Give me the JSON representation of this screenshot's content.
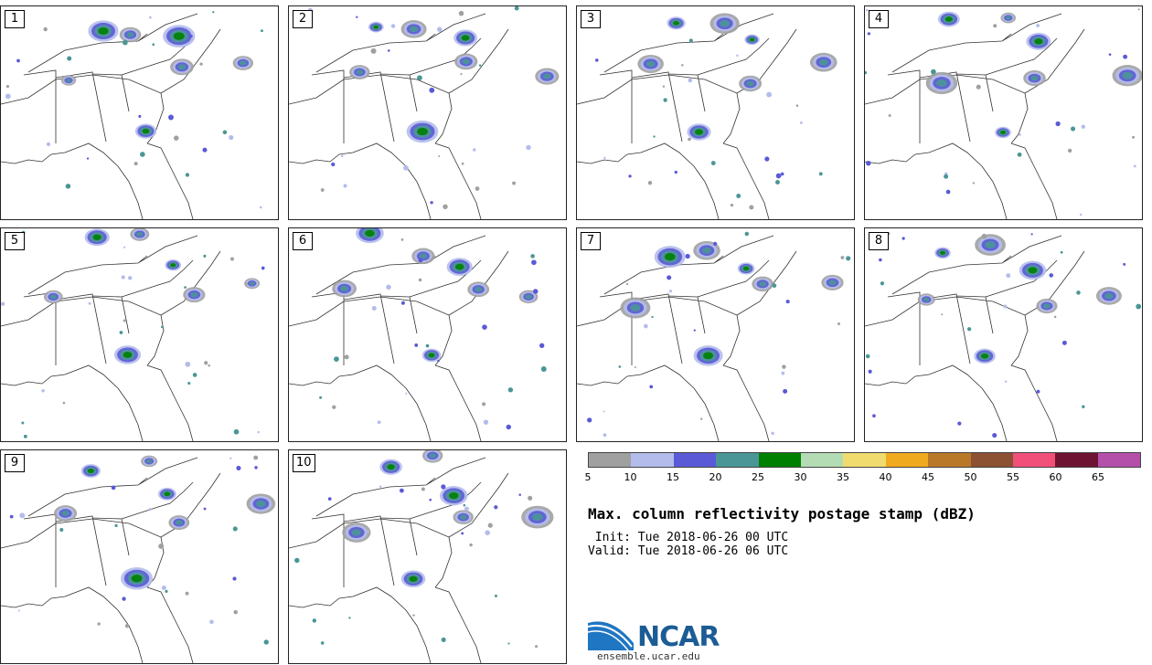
{
  "panels": [
    {
      "label": "1"
    },
    {
      "label": "2"
    },
    {
      "label": "3"
    },
    {
      "label": "4"
    },
    {
      "label": "5"
    },
    {
      "label": "6"
    },
    {
      "label": "7"
    },
    {
      "label": "8"
    },
    {
      "label": "9"
    },
    {
      "label": "10"
    }
  ],
  "colorbar": {
    "colors": [
      "#a0a0a0",
      "#b4bceb",
      "#5a5ad6",
      "#4a9696",
      "#008000",
      "#b4dcb4",
      "#f0dc6e",
      "#f0aa1e",
      "#b87828",
      "#8c5032",
      "#f0507a",
      "#6e1432",
      "#b450aa"
    ],
    "ticks": [
      "5",
      "10",
      "15",
      "20",
      "25",
      "30",
      "35",
      "40",
      "45",
      "50",
      "55",
      "60",
      "65"
    ]
  },
  "title": "Max. column reflectivity postage stamp (dBZ)",
  "init": " Init: Tue 2018-06-26 00 UTC",
  "valid": "Valid: Tue 2018-06-26 06 UTC",
  "logo": {
    "text": "NCAR",
    "url": "ensemble.ucar.edu"
  }
}
